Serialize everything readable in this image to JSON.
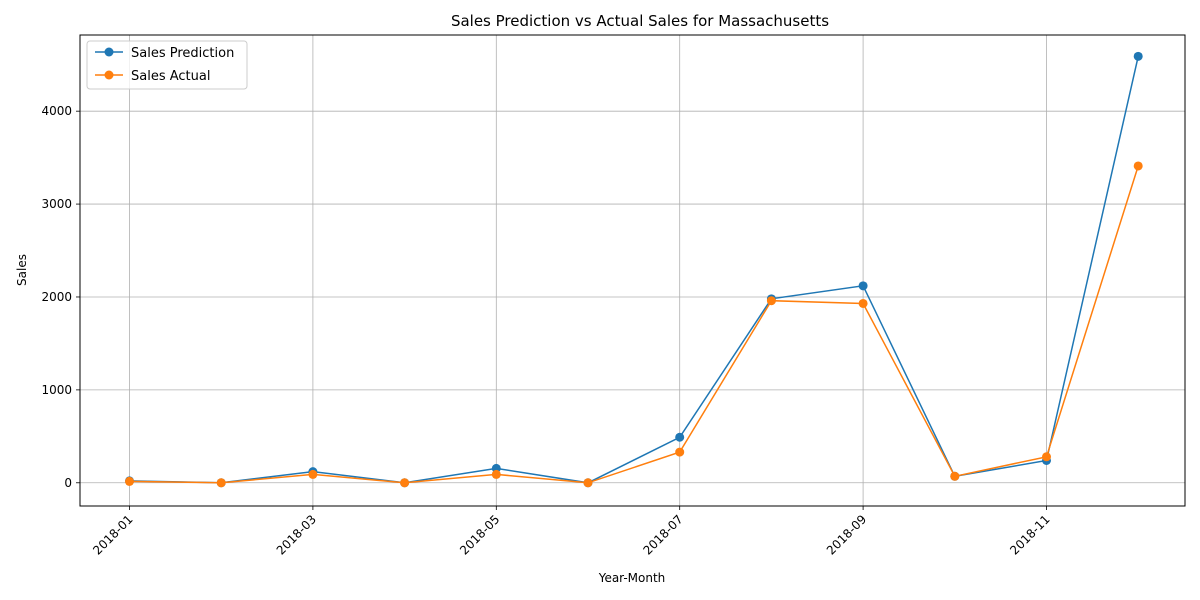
{
  "chart_data": {
    "type": "line",
    "title": "Sales Prediction vs Actual Sales for Massachusetts",
    "xlabel": "Year-Month",
    "ylabel": "Sales",
    "categories": [
      "2018-01",
      "2018-02",
      "2018-03",
      "2018-04",
      "2018-05",
      "2018-06",
      "2018-07",
      "2018-08",
      "2018-09",
      "2018-10",
      "2018-11",
      "2018-12"
    ],
    "x_tick_labels": [
      "2018-01",
      "2018-03",
      "2018-05",
      "2018-07",
      "2018-09",
      "2018-11"
    ],
    "y_ticks": [
      0,
      1000,
      2000,
      3000,
      4000
    ],
    "ylim": [
      -250,
      4820
    ],
    "grid": true,
    "legend_position": "top-left",
    "series": [
      {
        "name": "Sales Prediction",
        "color": "#1f77b4",
        "values": [
          20,
          0,
          120,
          0,
          155,
          0,
          490,
          1980,
          2120,
          70,
          240,
          4590
        ]
      },
      {
        "name": "Sales Actual",
        "color": "#ff7f0e",
        "values": [
          15,
          0,
          90,
          0,
          90,
          0,
          330,
          1960,
          1930,
          70,
          280,
          3410
        ]
      }
    ]
  }
}
